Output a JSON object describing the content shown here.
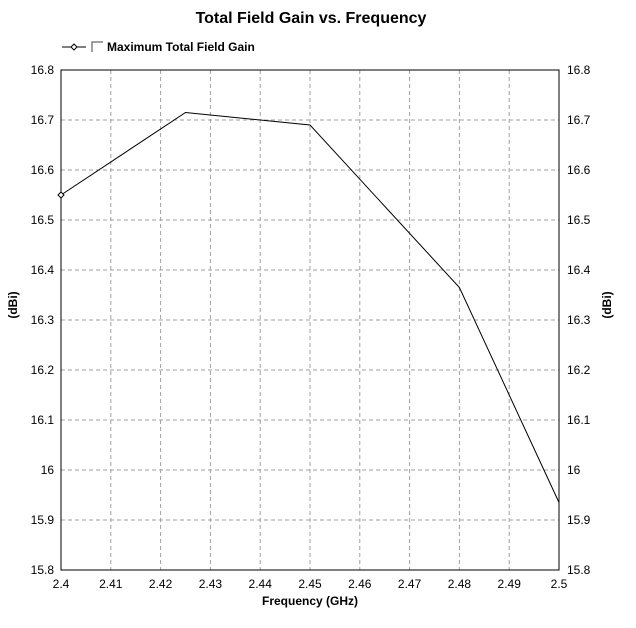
{
  "chart_data": {
    "type": "line",
    "title": "Total Field Gain vs. Frequency",
    "xlabel": "Frequency (GHz)",
    "ylabel": "(dBi)",
    "ylabel_right": "(dBi)",
    "xlim": [
      2.4,
      2.5
    ],
    "ylim": [
      15.8,
      16.8
    ],
    "x_ticks": [
      "2.4",
      "2.41",
      "2.42",
      "2.43",
      "2.44",
      "2.45",
      "2.46",
      "2.47",
      "2.48",
      "2.49",
      "2.5"
    ],
    "y_ticks": [
      "15.8",
      "15.9",
      "16",
      "16.1",
      "16.2",
      "16.3",
      "16.4",
      "16.5",
      "16.6",
      "16.7",
      "16.8"
    ],
    "grid": true,
    "legend_position": "top-left",
    "series": [
      {
        "name": "Maximum Total Field Gain",
        "color": "#000000",
        "x": [
          2.4,
          2.425,
          2.45,
          2.48,
          2.5
        ],
        "y": [
          16.55,
          16.715,
          16.69,
          16.365,
          15.935
        ]
      }
    ]
  }
}
